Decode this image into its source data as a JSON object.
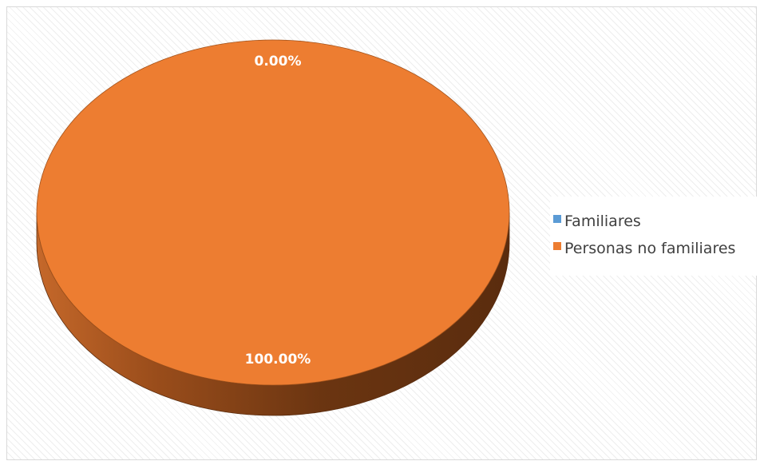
{
  "chart_data": {
    "type": "pie",
    "title": "",
    "categories": [
      "Familiares",
      "Personas no familiares"
    ],
    "values": [
      0.0,
      100.0
    ],
    "data_labels": [
      "0.00%",
      "100.00%"
    ],
    "colors": [
      "#5b9bd5",
      "#ed7d31"
    ],
    "three_d": true,
    "legend_position": "right"
  }
}
